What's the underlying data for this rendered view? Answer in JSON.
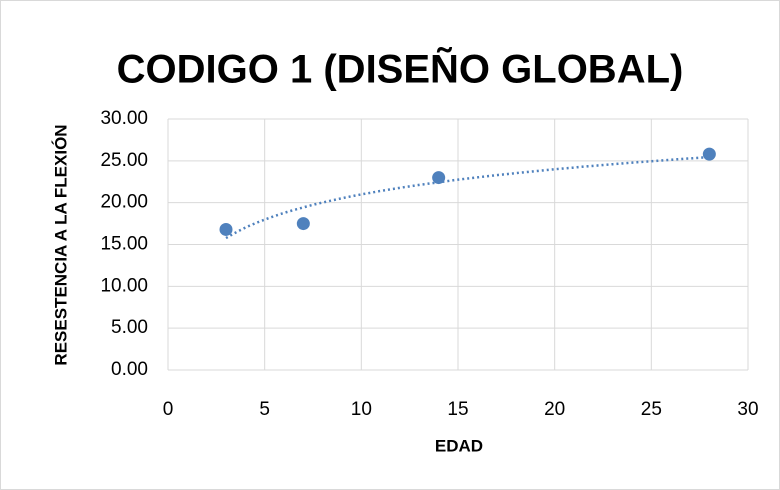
{
  "chart_data": {
    "type": "scatter",
    "title": "CODIGO 1 (DISEÑO GLOBAL)",
    "xlabel": "EDAD",
    "ylabel": "RESESTENCIA  A LA FLEXIÓN",
    "x": [
      3,
      7,
      14,
      28
    ],
    "values": [
      16.8,
      17.5,
      23.0,
      25.8
    ],
    "color": "#4f81bd",
    "trendline": "logarithmic",
    "xlim": [
      0,
      30
    ],
    "xticks": [
      0,
      5,
      10,
      15,
      20,
      25,
      30
    ],
    "ylim": [
      0,
      30
    ],
    "yticks": [
      {
        "value": 0,
        "label": "0.00"
      },
      {
        "value": 5,
        "label": "5.00"
      },
      {
        "value": 10,
        "label": "10.00"
      },
      {
        "value": 15,
        "label": "15.00"
      },
      {
        "value": 20,
        "label": "20.00"
      },
      {
        "value": 25,
        "label": "25.00"
      },
      {
        "value": 30,
        "label": "30.00"
      }
    ],
    "grid": true
  }
}
